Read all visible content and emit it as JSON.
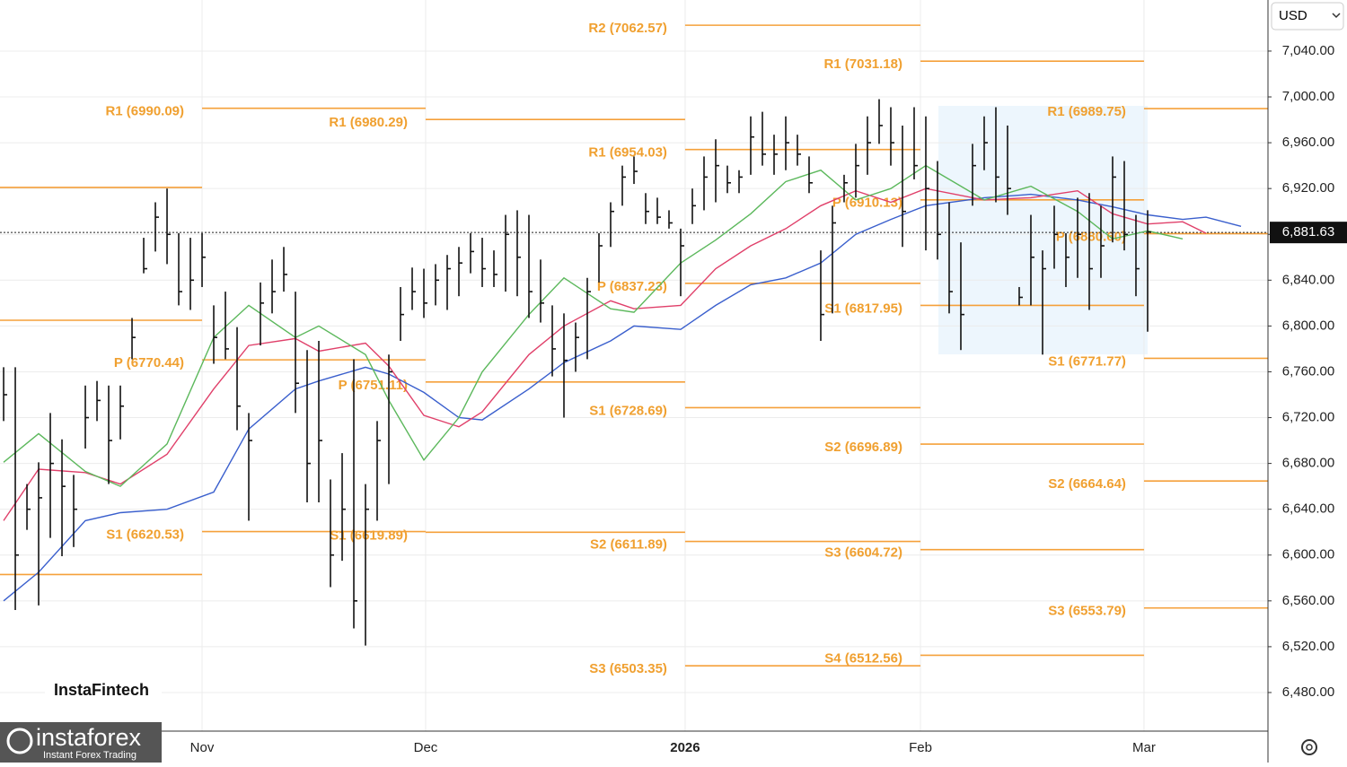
{
  "header": {
    "currency": "USD"
  },
  "watermarks": {
    "brand": "InstaFintech",
    "logo": "instaforex",
    "tagline": "Instant Forex Trading"
  },
  "chart_data": {
    "type": "ohlc",
    "xlim": [
      -17.31,
      91.31
    ],
    "xticks": [
      {
        "value": 0,
        "label": "Nov"
      },
      {
        "value": 19.15,
        "label": "Dec"
      },
      {
        "value": 41.38,
        "label": "2026"
      },
      {
        "value": 61.54,
        "label": "Feb"
      },
      {
        "value": 80.69,
        "label": "Mar"
      }
    ],
    "ylim": [
      6446.3,
      7084.6
    ],
    "yticks": [
      {
        "value": 6480,
        "label": "6,480.00"
      },
      {
        "value": 6520,
        "label": "6,520.00"
      },
      {
        "value": 6560,
        "label": "6,560.00"
      },
      {
        "value": 6600,
        "label": "6,600.00"
      },
      {
        "value": 6640,
        "label": "6,640.00"
      },
      {
        "value": 6680,
        "label": "6,680.00"
      },
      {
        "value": 6720,
        "label": "6,720.00"
      },
      {
        "value": 6760,
        "label": "6,760.00"
      },
      {
        "value": 6800,
        "label": "6,800.00"
      },
      {
        "value": 6840,
        "label": "6,840.00"
      },
      {
        "value": 6880,
        "label": "6,880.00"
      },
      {
        "value": 6920,
        "label": "6,920.00"
      },
      {
        "value": 6960,
        "label": "6,960.00"
      },
      {
        "value": 7000,
        "label": "7,000.00"
      },
      {
        "value": 7040,
        "label": "7,040.00"
      }
    ],
    "grid": true,
    "bar_color": "#111111",
    "x": [
      -17,
      -16,
      -15,
      -14,
      -13,
      -12,
      -11,
      -10,
      -9,
      -8,
      -7,
      -6,
      -5,
      -4,
      -3,
      -2,
      -1,
      0,
      1,
      2,
      3,
      4,
      5,
      6,
      7,
      8,
      9,
      10,
      11,
      12,
      13,
      14,
      15,
      16,
      17,
      18,
      19,
      20,
      21,
      22,
      23,
      24,
      25,
      26,
      27,
      28,
      29,
      30,
      31,
      32,
      33,
      34,
      35,
      36,
      37,
      38,
      39,
      40,
      41,
      42,
      43,
      44,
      45,
      46,
      47,
      48,
      49,
      50,
      51,
      52,
      53,
      54,
      55,
      56,
      57,
      58,
      59,
      60,
      61,
      62,
      63,
      64,
      65,
      66,
      67,
      68,
      69,
      70,
      71,
      72,
      73,
      74,
      75,
      76,
      77,
      78,
      79,
      80,
      81
    ],
    "high": [
      6764,
      6764,
      6662,
      6681,
      6724,
      6701,
      6670,
      6748,
      6752,
      6748,
      6748,
      6807,
      6877,
      6908,
      6920,
      6881,
      6877,
      6881,
      6818,
      6830,
      6799,
      6724,
      6838,
      6858,
      6869,
      6830,
      6779,
      6787,
      6666,
      6689,
      6771,
      6662,
      6717,
      6775,
      6834,
      6851,
      6850,
      6854,
      6862,
      6869,
      6881,
      6877,
      6866,
      6897,
      6901,
      6897,
      6858,
      6818,
      6811,
      6803,
      6842,
      6881,
      6908,
      6940,
      6948,
      6916,
      6912,
      6901,
      6885,
      6920,
      6948,
      6963,
      6940,
      6936,
      6983,
      6987,
      6967,
      6983,
      6967,
      6948,
      6866,
      6905,
      6932,
      6959,
      6983,
      6998,
      6991,
      6975,
      6991,
      6983,
      6944,
      6908,
      6873,
      6959,
      6983,
      6991,
      6975,
      6834,
      6897,
      6866,
      6905,
      6881,
      6912,
      6916,
      6905,
      6948,
      6944,
      6897,
      6901
    ],
    "low": [
      6717,
      6552,
      6622,
      6556,
      6615,
      6599,
      6607,
      6693,
      6717,
      6662,
      6701,
      6771,
      6846,
      6865,
      6854,
      6818,
      6814,
      6834,
      6767,
      6771,
      6709,
      6630,
      6783,
      6811,
      6830,
      6724,
      6646,
      6646,
      6572,
      6595,
      6536,
      6521,
      6630,
      6662,
      6787,
      6814,
      6807,
      6818,
      6814,
      6826,
      6846,
      6834,
      6834,
      6830,
      6826,
      6807,
      6803,
      6756,
      6720,
      6760,
      6771,
      6838,
      6869,
      6905,
      6924,
      6889,
      6889,
      6885,
      6826,
      6889,
      6901,
      6908,
      6916,
      6916,
      6932,
      6940,
      6932,
      6936,
      6940,
      6916,
      6787,
      6811,
      6908,
      6912,
      6932,
      6959,
      6940,
      6869,
      6928,
      6866,
      6858,
      6811,
      6779,
      6905,
      6936,
      6908,
      6897,
      6818,
      6818,
      6775,
      6850,
      6834,
      6842,
      6814,
      6842,
      6873,
      6866,
      6826,
      6795
    ],
    "close": [
      6740,
      6600,
      6640,
      6650,
      6680,
      6660,
      6640,
      6720,
      6735,
      6700,
      6730,
      6790,
      6850,
      6895,
      6880,
      6830,
      6840,
      6860,
      6790,
      6780,
      6730,
      6700,
      6820,
      6830,
      6845,
      6750,
      6680,
      6700,
      6600,
      6640,
      6560,
      6640,
      6700,
      6760,
      6810,
      6830,
      6820,
      6840,
      6850,
      6855,
      6865,
      6850,
      6845,
      6880,
      6860,
      6830,
      6820,
      6780,
      6770,
      6790,
      6830,
      6870,
      6900,
      6930,
      6935,
      6900,
      6895,
      6890,
      6870,
      6905,
      6930,
      6940,
      6925,
      6930,
      6965,
      6950,
      6950,
      6960,
      6950,
      6925,
      6810,
      6890,
      6925,
      6940,
      6960,
      6975,
      6960,
      6900,
      6940,
      6920,
      6880,
      6830,
      6810,
      6940,
      6960,
      6930,
      6920,
      6825,
      6860,
      6850,
      6880,
      6860,
      6880,
      6850,
      6870,
      6930,
      6880,
      6850,
      6882
    ],
    "ma_x": [
      -17,
      -14,
      -10,
      -7,
      -3,
      1,
      4,
      8,
      10,
      14,
      16,
      19,
      22,
      24,
      28,
      31,
      35,
      37,
      41,
      44,
      47,
      50,
      53,
      56,
      59,
      62,
      67,
      71,
      75,
      78,
      81,
      84,
      86,
      89
    ],
    "moving_averages": [
      {
        "color": "#3a5fcd",
        "values": [
          6560,
          6585,
          6630,
          6637,
          6640,
          6655,
          6710,
          6745,
          6752,
          6764,
          6758,
          6742,
          6720,
          6718,
          6745,
          6768,
          6787,
          6800,
          6797,
          6818,
          6836,
          6842,
          6855,
          6880,
          6893,
          6905,
          6912,
          6915,
          6910,
          6904,
          6897,
          6893,
          6895,
          6887
        ]
      },
      {
        "color": "#e0406a",
        "values": [
          6630,
          6675,
          6672,
          6662,
          6688,
          6745,
          6783,
          6789,
          6778,
          6785,
          6765,
          6722,
          6712,
          6725,
          6775,
          6800,
          6822,
          6815,
          6818,
          6850,
          6870,
          6885,
          6905,
          6918,
          6908,
          6920,
          6910,
          6912,
          6918,
          6898,
          6889,
          6891,
          6881,
          null
        ]
      },
      {
        "color": "#5cb85c",
        "values": [
          6681,
          6706,
          6673,
          6660,
          6697,
          6790,
          6818,
          6790,
          6800,
          6775,
          6735,
          6683,
          6720,
          6760,
          6810,
          6842,
          6815,
          6812,
          6855,
          6875,
          6898,
          6926,
          6936,
          6910,
          6920,
          6940,
          6910,
          6922,
          6900,
          6876,
          6883,
          6876,
          null,
          null
        ]
      }
    ],
    "pivot_color": "#f5a03a",
    "pivots": [
      {
        "value": 6921,
        "x": [
          -17.31,
          0
        ]
      },
      {
        "value": 6805,
        "x": [
          -17.31,
          0
        ]
      },
      {
        "value": 6583,
        "x": [
          -17.31,
          0
        ]
      },
      {
        "label": "R1 (6990.09)",
        "value": 6990.09,
        "x": [
          0,
          19.15
        ]
      },
      {
        "label": "P (6770.44)",
        "value": 6770.44,
        "x": [
          0,
          19.15
        ]
      },
      {
        "label": "S1 (6620.53)",
        "value": 6620.53,
        "x": [
          0,
          19.15
        ]
      },
      {
        "label": "R1 (6980.29)",
        "value": 6980.29,
        "x": [
          19.15,
          41.38
        ]
      },
      {
        "label": "P (6751.11)",
        "value": 6751.11,
        "x": [
          19.15,
          41.38
        ]
      },
      {
        "label": "S1 (6619.89)",
        "value": 6619.89,
        "x": [
          19.15,
          41.38
        ]
      },
      {
        "label": "R2 (7062.57)",
        "value": 7062.57,
        "x": [
          41.38,
          61.54
        ]
      },
      {
        "label": "R1 (6954.03)",
        "value": 6954.03,
        "x": [
          41.38,
          61.54
        ]
      },
      {
        "label": "P (6837.23)",
        "value": 6837.23,
        "x": [
          41.38,
          61.54
        ]
      },
      {
        "label": "S1 (6728.69)",
        "value": 6728.69,
        "x": [
          41.38,
          61.54
        ]
      },
      {
        "label": "S2 (6611.89)",
        "value": 6611.89,
        "x": [
          41.38,
          61.54
        ]
      },
      {
        "label": "S3 (6503.35)",
        "value": 6503.35,
        "x": [
          41.38,
          61.54
        ]
      },
      {
        "label": "R1 (7031.18)",
        "value": 7031.18,
        "x": [
          61.54,
          80.69
        ]
      },
      {
        "label": "P (6910.13)",
        "value": 6910.13,
        "x": [
          61.54,
          80.69
        ]
      },
      {
        "label": "S1 (6817.95)",
        "value": 6817.95,
        "x": [
          61.54,
          80.69
        ]
      },
      {
        "label": "S2 (6696.89)",
        "value": 6696.89,
        "x": [
          61.54,
          80.69
        ]
      },
      {
        "label": "S3 (6604.72)",
        "value": 6604.72,
        "x": [
          61.54,
          80.69
        ]
      },
      {
        "label": "S4 (6512.56)",
        "value": 6512.56,
        "x": [
          61.54,
          80.69
        ]
      },
      {
        "label": "R1 (6989.75)",
        "value": 6989.75,
        "x": [
          80.69,
          91.31
        ]
      },
      {
        "label": "P (6880.60)",
        "value": 6880.6,
        "x": [
          80.69,
          91.31
        ]
      },
      {
        "label": "S1 (6771.77)",
        "value": 6771.77,
        "x": [
          80.69,
          91.31
        ]
      },
      {
        "label": "S2 (6664.64)",
        "value": 6664.64,
        "x": [
          80.69,
          91.31
        ]
      },
      {
        "label": "S3 (6553.79)",
        "value": 6553.79,
        "x": [
          80.69,
          91.31
        ]
      }
    ],
    "last_price": {
      "value": 6881.63,
      "label": "6,881.63"
    }
  }
}
